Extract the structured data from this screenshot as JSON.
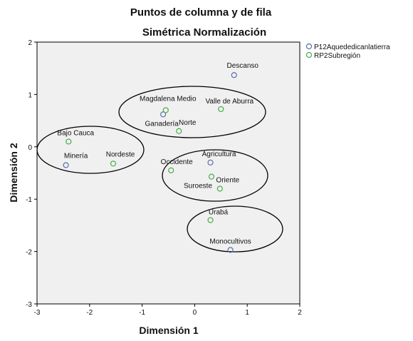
{
  "chart_data": {
    "type": "scatter",
    "title": "Puntos de columna y de fila",
    "subtitle": "Simétrica Normalización",
    "xlabel": "Dimensión 1",
    "ylabel": "Dimensión 2",
    "xlim": [
      -3,
      2
    ],
    "ylim": [
      -3,
      2
    ],
    "xticks": [
      "-3",
      "-2",
      "-1",
      "0",
      "1",
      "2"
    ],
    "yticks": [
      "-3",
      "-2",
      "-1",
      "0",
      "1",
      "2"
    ],
    "grid": false,
    "legend_position": "top-right",
    "series": [
      {
        "name": "P12Aquededicanlatierra",
        "color": "#5b6db0",
        "points": [
          {
            "label": "Descanso",
            "x": 0.75,
            "y": 1.37
          },
          {
            "label": "Ganadería",
            "x": -0.6,
            "y": 0.62
          },
          {
            "label": "Minería",
            "x": -2.45,
            "y": -0.35
          },
          {
            "label": "Agricultura",
            "x": 0.3,
            "y": -0.3
          },
          {
            "label": "Monocultivos",
            "x": 0.68,
            "y": -1.97
          }
        ]
      },
      {
        "name": "RP2Subregión",
        "color": "#4aaa4a",
        "points": [
          {
            "label": "Magdalena Medio",
            "x": -0.55,
            "y": 0.7
          },
          {
            "label": "Valle de Aburra",
            "x": 0.5,
            "y": 0.72
          },
          {
            "label": "Norte",
            "x": -0.3,
            "y": 0.3
          },
          {
            "label": "Bajo Cauca",
            "x": -2.4,
            "y": 0.1
          },
          {
            "label": "Nordeste",
            "x": -1.55,
            "y": -0.32
          },
          {
            "label": "Occidente",
            "x": -0.45,
            "y": -0.45
          },
          {
            "label": "Suroeste",
            "x": 0.32,
            "y": -0.57
          },
          {
            "label": "Oriente",
            "x": 0.48,
            "y": -0.8
          },
          {
            "label": "Urabá",
            "x": 0.3,
            "y": -1.4
          }
        ]
      }
    ]
  }
}
